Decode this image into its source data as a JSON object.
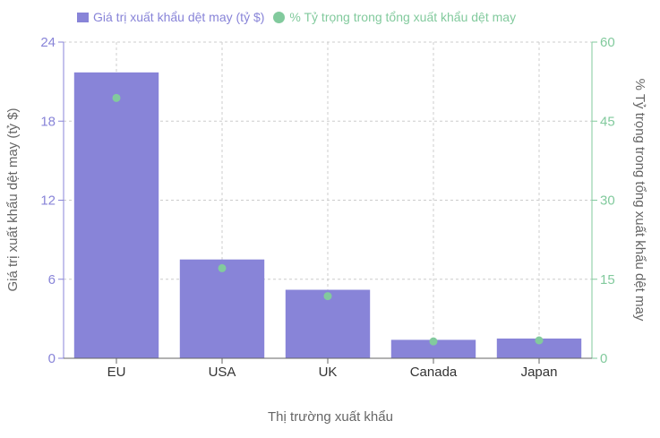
{
  "colors": {
    "bar": "#8884d8",
    "dot": "#82ca9d",
    "left_axis": "#8884d8",
    "right_axis": "#82ca9d",
    "grid": "#cccccc",
    "axis_title": "#666666",
    "category_tick": "#666666",
    "bottom_axis": "#666666"
  },
  "chart_data": {
    "type": "bar",
    "categories": [
      "EU",
      "USA",
      "UK",
      "Canada",
      "Japan"
    ],
    "series": [
      {
        "name": "Giá trị xuất khẩu dệt may (tỷ $)",
        "type": "bar",
        "axis": "left",
        "values": [
          21.7,
          7.5,
          5.2,
          1.4,
          1.5
        ]
      },
      {
        "name": "% Tỷ trọng trong tổng xuất khẩu dệt may",
        "type": "scatter",
        "axis": "right",
        "values": [
          49.4,
          17.1,
          11.8,
          3.2,
          3.4
        ]
      }
    ],
    "xlabel": "Thị trường xuất khẩu",
    "ylabel": "Giá trị xuất khẩu dệt may (tỷ $)",
    "y2label": "% Tỷ trọng trong tổng xuất khẩu dệt may",
    "ylim": [
      0,
      24
    ],
    "y2lim": [
      0,
      60
    ],
    "yticks": [
      0,
      6,
      12,
      18,
      24
    ],
    "y2ticks": [
      0,
      15,
      30,
      45,
      60
    ],
    "grid": true,
    "legend_position": "top-left"
  }
}
